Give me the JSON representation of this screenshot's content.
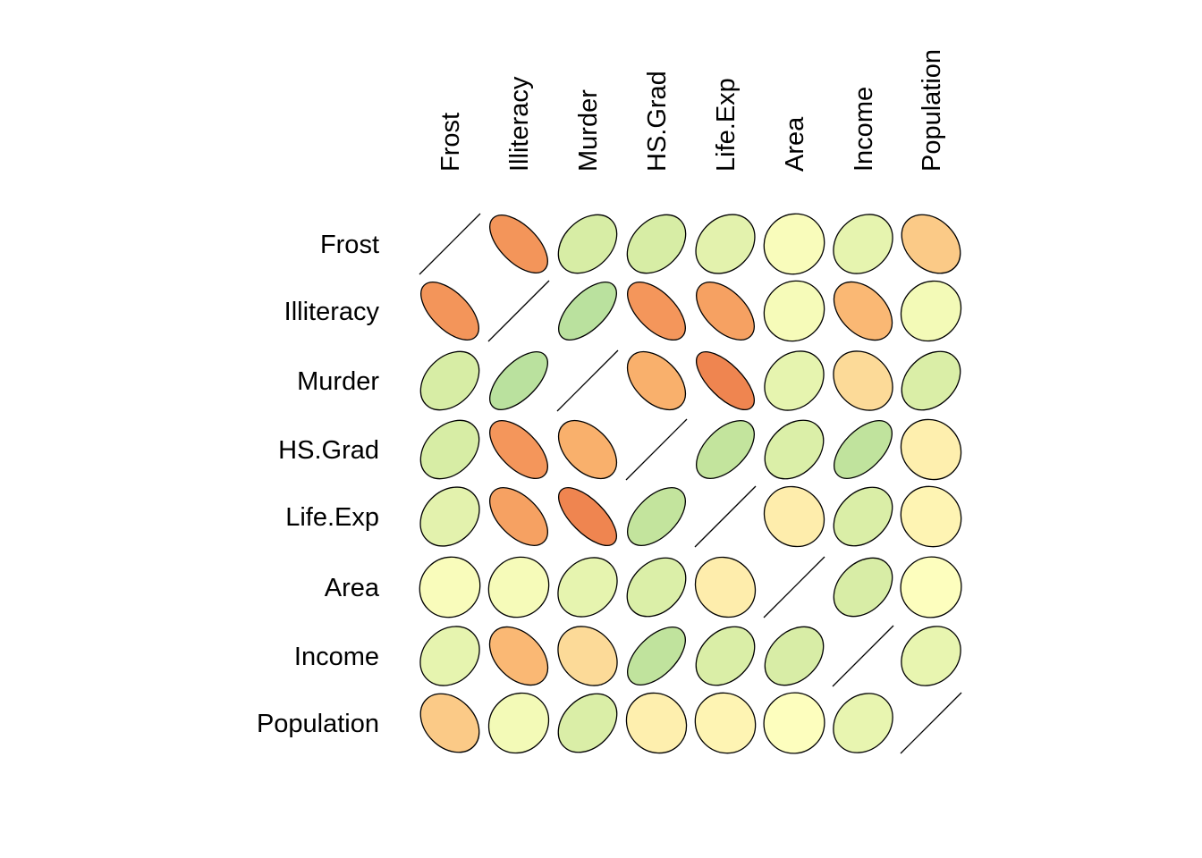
{
  "chart_data": {
    "type": "heatmap",
    "glyph": "ellipse",
    "variables": [
      "Frost",
      "Illiteracy",
      "Murder",
      "HS.Grad",
      "Life.Exp",
      "Area",
      "Income",
      "Population"
    ],
    "column_labels": [
      "Frost",
      "Illiteracy",
      "Murder",
      "HS.Grad",
      "Life.Exp",
      "Area",
      "Income",
      "Population"
    ],
    "row_labels": [
      "Frost",
      "Illiteracy",
      "Murder",
      "HS.Grad",
      "Life.Exp",
      "Area",
      "Income",
      "Population"
    ],
    "matrix": [
      [
        1.0,
        -0.67,
        0.37,
        0.37,
        0.26,
        0.06,
        0.23,
        -0.33
      ],
      [
        -0.67,
        1.0,
        0.7,
        -0.66,
        -0.59,
        0.08,
        -0.44,
        0.11
      ],
      [
        0.37,
        0.7,
        1.0,
        -0.49,
        -0.78,
        0.23,
        -0.23,
        0.34
      ],
      [
        0.37,
        -0.66,
        -0.49,
        1.0,
        0.58,
        0.33,
        0.62,
        -0.1
      ],
      [
        0.26,
        -0.59,
        -0.78,
        0.58,
        1.0,
        -0.11,
        0.34,
        -0.07
      ],
      [
        0.06,
        0.08,
        0.23,
        0.33,
        -0.11,
        1.0,
        0.36,
        0.02
      ],
      [
        0.23,
        -0.44,
        -0.23,
        0.62,
        0.34,
        0.36,
        1.0,
        0.21
      ],
      [
        -0.33,
        0.11,
        0.34,
        -0.1,
        -0.07,
        0.02,
        0.21,
        1.0
      ]
    ],
    "value_range": [
      -1,
      1
    ],
    "color_scale": {
      "palette": "red-yellow-green",
      "neg_strong": "#E8643C",
      "neg_mid": "#F9AE6A",
      "zero": "#FFFFBF",
      "pos_mid": "#C9E69C",
      "pos_strong": "#A4D9A0"
    },
    "diagonal": "line",
    "title": "",
    "legend": "none"
  }
}
